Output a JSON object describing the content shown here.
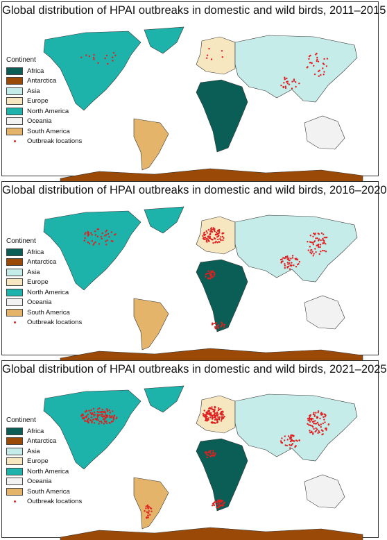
{
  "panels": [
    {
      "title": "Global distribution of HPAI outbreaks in domestic and wild birds, 2011–2015",
      "density": 1
    },
    {
      "title": "Global distribution of HPAI outbreaks in domestic and wild birds, 2016–2020",
      "density": 2
    },
    {
      "title": "Global distribution of HPAI outbreaks in domestic and wild birds, 2021–2025",
      "density": 3
    }
  ],
  "legend": {
    "title": "Continent",
    "items": [
      {
        "label": "Africa",
        "color": "#0b5e56"
      },
      {
        "label": "Antarctica",
        "color": "#9a4a06"
      },
      {
        "label": "Asia",
        "color": "#c6ecea"
      },
      {
        "label": "Europe",
        "color": "#f7e7c0"
      },
      {
        "label": "North America",
        "color": "#1db3ab"
      },
      {
        "label": "Oceania",
        "color": "#f2f2f2"
      },
      {
        "label": "South America",
        "color": "#e3b46a"
      }
    ],
    "outbreak_label": "Outbreak locations",
    "outbreak_color": "#e02020"
  }
}
